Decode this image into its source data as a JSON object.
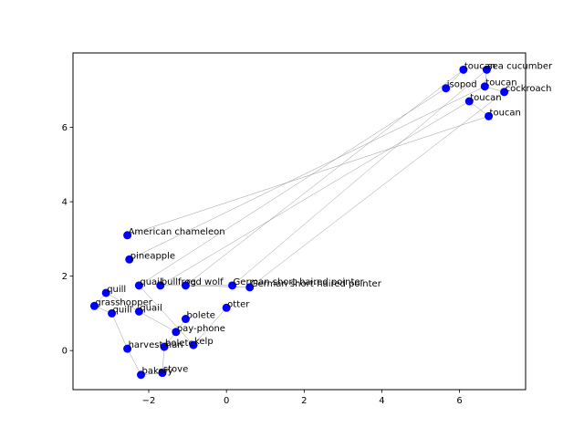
{
  "chart_data": {
    "type": "scatter",
    "title": "",
    "xlabel": "",
    "ylabel": "",
    "xlim": [
      -3.95,
      7.7
    ],
    "ylim": [
      -1.05,
      8.0
    ],
    "xticks": [
      -2,
      0,
      2,
      4,
      6
    ],
    "yticks": [
      0,
      2,
      4,
      6
    ],
    "grid": false,
    "point_color": "#0000ff",
    "edge_color": "#808080",
    "points": [
      {
        "label": "toucan",
        "x": 6.1,
        "y": 7.55
      },
      {
        "label": "sea cucumber",
        "x": 6.7,
        "y": 7.55
      },
      {
        "label": "isopod",
        "x": 5.65,
        "y": 7.05
      },
      {
        "label": "toucan",
        "x": 6.65,
        "y": 7.1
      },
      {
        "label": "cockroach",
        "x": 7.15,
        "y": 6.95
      },
      {
        "label": "toucan",
        "x": 6.25,
        "y": 6.7
      },
      {
        "label": "toucan",
        "x": 6.75,
        "y": 6.3
      },
      {
        "label": "American chameleon",
        "x": -2.55,
        "y": 3.1
      },
      {
        "label": "pineapple",
        "x": -2.5,
        "y": 2.45
      },
      {
        "label": "quail",
        "x": -2.25,
        "y": 1.75
      },
      {
        "label": "bullfrog",
        "x": -1.7,
        "y": 1.75
      },
      {
        "label": "red wolf",
        "x": -1.05,
        "y": 1.75
      },
      {
        "label": "German short-haired pointer",
        "x": 0.15,
        "y": 1.75
      },
      {
        "label": "German short-haired pointer",
        "x": 0.6,
        "y": 1.7
      },
      {
        "label": "quill",
        "x": -3.1,
        "y": 1.55
      },
      {
        "label": "grasshopper",
        "x": -3.4,
        "y": 1.2
      },
      {
        "label": "quill",
        "x": -2.95,
        "y": 1.0
      },
      {
        "label": "quail",
        "x": -2.25,
        "y": 1.05
      },
      {
        "label": "otter",
        "x": 0.0,
        "y": 1.15
      },
      {
        "label": "bolete",
        "x": -1.05,
        "y": 0.85
      },
      {
        "label": "pay-phone",
        "x": -1.3,
        "y": 0.5
      },
      {
        "label": "bolete",
        "x": -1.6,
        "y": 0.1
      },
      {
        "label": "kelp",
        "x": -0.85,
        "y": 0.15
      },
      {
        "label": "harvestman",
        "x": -2.55,
        "y": 0.05
      },
      {
        "label": "stove",
        "x": -1.65,
        "y": -0.6
      },
      {
        "label": "bakery",
        "x": -2.2,
        "y": -0.65
      }
    ],
    "edges": [
      [
        7,
        6
      ],
      [
        8,
        3
      ],
      [
        9,
        2
      ],
      [
        9,
        22
      ],
      [
        10,
        5
      ],
      [
        10,
        12
      ],
      [
        11,
        0
      ],
      [
        12,
        1
      ],
      [
        13,
        4
      ],
      [
        11,
        13
      ],
      [
        14,
        15
      ],
      [
        15,
        16
      ],
      [
        14,
        17
      ],
      [
        16,
        23
      ],
      [
        17,
        20
      ],
      [
        20,
        21
      ],
      [
        21,
        24
      ],
      [
        24,
        25
      ],
      [
        23,
        25
      ],
      [
        22,
        18
      ],
      [
        19,
        20
      ],
      [
        0,
        2
      ],
      [
        3,
        4
      ],
      [
        5,
        6
      ],
      [
        1,
        3
      ]
    ]
  }
}
